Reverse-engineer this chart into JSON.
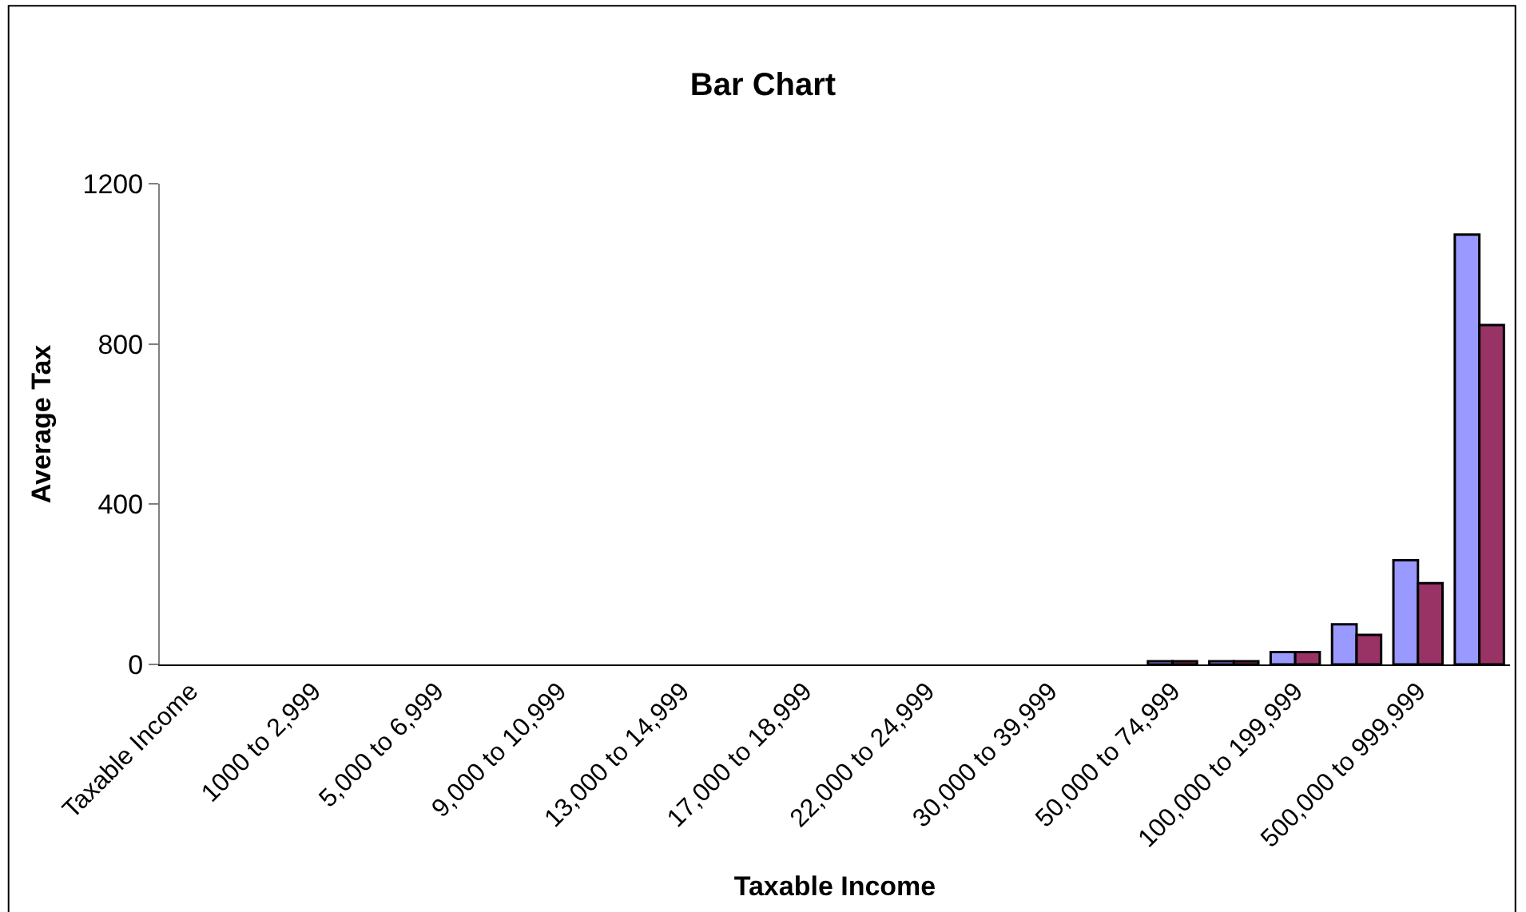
{
  "chart_data": {
    "type": "bar",
    "title": "Bar Chart",
    "xlabel": "Taxable Income",
    "ylabel": "Average Tax",
    "categories": [
      "Taxable Income",
      null,
      "1000 to 2,999",
      null,
      "5,000 to 6,999",
      null,
      "9,000 to 10,999",
      null,
      "13,000 to 14,999",
      null,
      "17,000 to 18,999",
      null,
      "22,000 to 24,999",
      null,
      "30,000 to 39,999",
      null,
      "50,000 to 74,999",
      null,
      "100,000 to 199,999",
      null,
      "500,000 to 999,999",
      null
    ],
    "series": [
      {
        "color": "#9999ff",
        "values": [
          null,
          null,
          null,
          null,
          null,
          null,
          null,
          null,
          null,
          null,
          null,
          null,
          null,
          null,
          null,
          null,
          8,
          8,
          31,
          100,
          260,
          1073
        ]
      },
      {
        "color": "#993366",
        "values": [
          null,
          null,
          null,
          null,
          null,
          null,
          null,
          null,
          null,
          null,
          null,
          null,
          null,
          null,
          null,
          null,
          8,
          8,
          31,
          74,
          203,
          847
        ]
      }
    ],
    "ylim": [
      0,
      1200
    ],
    "yticks": [
      0,
      400,
      800,
      1200
    ],
    "legend": false
  }
}
